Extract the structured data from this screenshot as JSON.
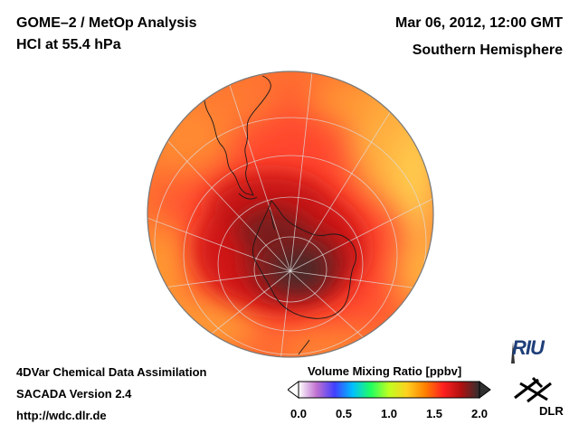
{
  "header": {
    "left_line1": "GOME–2 / MetOp Analysis",
    "left_line2": "HCl at 55.4 hPa",
    "right_line1": "Mar 06, 2012, 12:00 GMT",
    "right_line2": "Southern Hemisphere"
  },
  "footer": {
    "line1": "4DVar Chemical Data Assimilation",
    "line2": "SACADA Version 2.4",
    "line3": "http://wdc.dlr.de"
  },
  "colorbar": {
    "title": "Volume Mixing Ratio [ppbv]",
    "ticks": [
      "0.0",
      "0.5",
      "1.0",
      "1.5",
      "2.0"
    ],
    "min": 0.0,
    "max": 2.0,
    "stops": [
      "#ffffff",
      "#c070d0",
      "#4040ff",
      "#00c0ff",
      "#20ff60",
      "#c0ff20",
      "#ffd020",
      "#ff8000",
      "#ff2020",
      "#b01010",
      "#303030"
    ]
  },
  "logos": {
    "riu": "RIU",
    "dlr": "DLR"
  }
}
